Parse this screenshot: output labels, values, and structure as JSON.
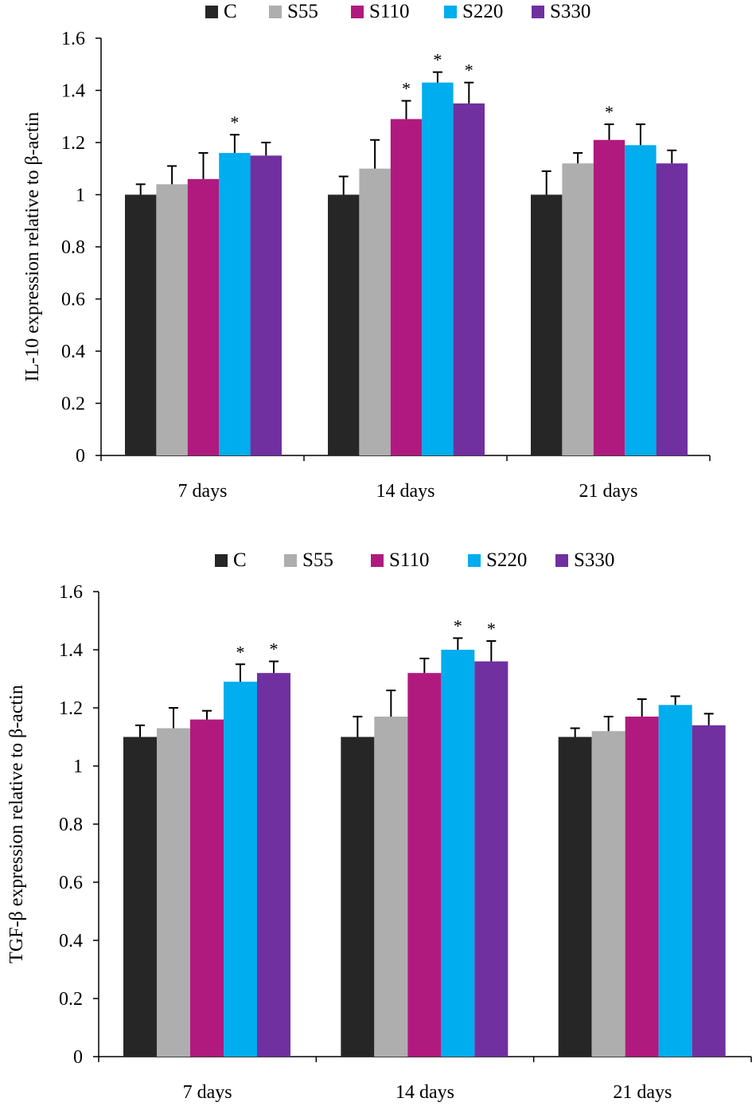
{
  "chart_data": [
    {
      "type": "bar",
      "ylabel": "IL-10 expression relative to β-actin",
      "xlabel": "",
      "categories": [
        "7 days",
        "14 days",
        "21 days"
      ],
      "ylim": [
        0,
        1.6
      ],
      "yticks": [
        "0",
        "0.2",
        "0.4",
        "0.6",
        "0.8",
        "1",
        "1.2",
        "1.4",
        "1.6"
      ],
      "legend_position": "top-center",
      "grid": false,
      "series": [
        {
          "name": "C",
          "color": "#262626",
          "values": [
            1.0,
            1.0,
            1.0
          ],
          "errors": [
            0.04,
            0.07,
            0.09
          ],
          "significant": [
            false,
            false,
            false
          ]
        },
        {
          "name": "S55",
          "color": "#aeaeae",
          "values": [
            1.04,
            1.1,
            1.12
          ],
          "errors": [
            0.07,
            0.11,
            0.04
          ],
          "significant": [
            false,
            false,
            false
          ]
        },
        {
          "name": "S110",
          "color": "#b01a7e",
          "values": [
            1.06,
            1.29,
            1.21
          ],
          "errors": [
            0.1,
            0.07,
            0.06
          ],
          "significant": [
            false,
            true,
            true
          ]
        },
        {
          "name": "S220",
          "color": "#00adee",
          "values": [
            1.16,
            1.43,
            1.19
          ],
          "errors": [
            0.07,
            0.04,
            0.08
          ],
          "significant": [
            true,
            true,
            false
          ]
        },
        {
          "name": "S330",
          "color": "#7030a0",
          "values": [
            1.15,
            1.35,
            1.12
          ],
          "errors": [
            0.05,
            0.08,
            0.05
          ],
          "significant": [
            false,
            true,
            false
          ]
        }
      ],
      "significance_marker": "*"
    },
    {
      "type": "bar",
      "ylabel": "TGF-β expression relative to β-actin",
      "xlabel": "",
      "categories": [
        "7 days",
        "14 days",
        "21 days"
      ],
      "ylim": [
        0,
        1.6
      ],
      "yticks": [
        "0",
        "0.2",
        "0.4",
        "0.6",
        "0.8",
        "1",
        "1.2",
        "1.4",
        "1.6"
      ],
      "legend_position": "top-center",
      "grid": false,
      "series": [
        {
          "name": "C",
          "color": "#262626",
          "values": [
            1.1,
            1.1,
            1.1
          ],
          "errors": [
            0.04,
            0.07,
            0.03
          ],
          "significant": [
            false,
            false,
            false
          ]
        },
        {
          "name": "S55",
          "color": "#aeaeae",
          "values": [
            1.13,
            1.17,
            1.12
          ],
          "errors": [
            0.07,
            0.09,
            0.05
          ],
          "significant": [
            false,
            false,
            false
          ]
        },
        {
          "name": "S110",
          "color": "#b01a7e",
          "values": [
            1.16,
            1.32,
            1.17
          ],
          "errors": [
            0.03,
            0.05,
            0.06
          ],
          "significant": [
            false,
            false,
            false
          ]
        },
        {
          "name": "S220",
          "color": "#00adee",
          "values": [
            1.29,
            1.4,
            1.21
          ],
          "errors": [
            0.06,
            0.04,
            0.03
          ],
          "significant": [
            true,
            true,
            false
          ]
        },
        {
          "name": "S330",
          "color": "#7030a0",
          "values": [
            1.32,
            1.36,
            1.14
          ],
          "errors": [
            0.04,
            0.07,
            0.04
          ],
          "significant": [
            true,
            true,
            false
          ]
        }
      ],
      "significance_marker": "*"
    }
  ]
}
